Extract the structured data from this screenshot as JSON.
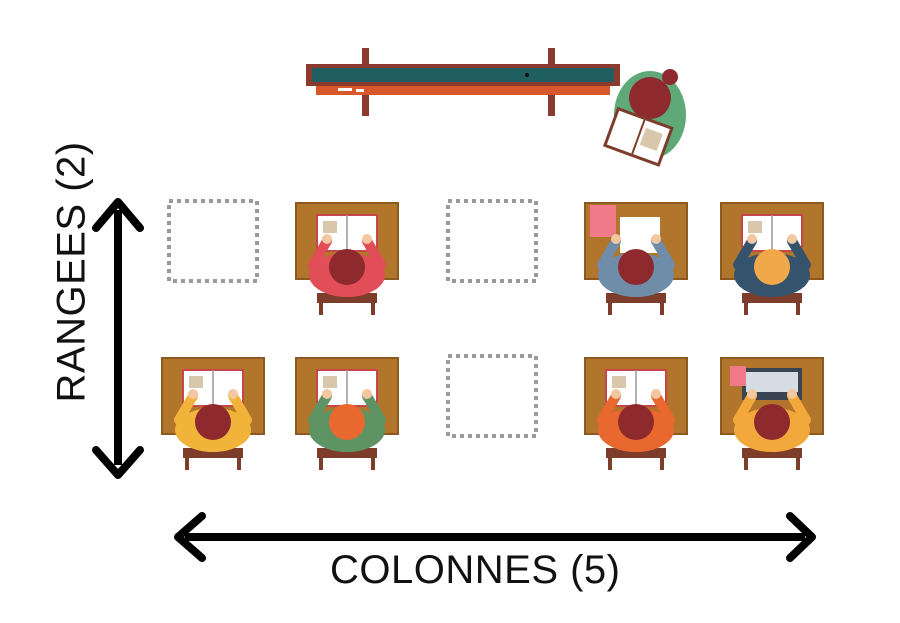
{
  "diagram": {
    "rows_label": "RANGEES   (2)",
    "columns_label": "COLONNES (5)"
  },
  "colors": {
    "desk": "#B1752B",
    "desk_dark": "#8C5A1E",
    "chair": "#7E3C2A",
    "board_frame": "#8B3A2E",
    "board_surface": "#1F5F5F",
    "board_ledge": "#D9582B",
    "empty_slot": "#9A9A9A",
    "arrow": "#000000"
  },
  "grid": {
    "rows": [
      [
        {
          "status": "empty"
        },
        {
          "status": "student",
          "shirt": "#E24E58",
          "hair": "#8E2A2E",
          "item": "book"
        },
        {
          "status": "empty"
        },
        {
          "status": "student",
          "shirt": "#6F8CA8",
          "hair": "#8E2A2E",
          "item": "papers"
        },
        {
          "status": "student",
          "shirt": "#36536E",
          "hair": "#F0A84A",
          "item": "book"
        }
      ],
      [
        {
          "status": "student",
          "shirt": "#F2B33B",
          "hair": "#8E2A2E",
          "item": "book"
        },
        {
          "status": "student",
          "shirt": "#5E9464",
          "hair": "#E9682F",
          "item": "book"
        },
        {
          "status": "empty"
        },
        {
          "status": "student",
          "shirt": "#E9682F",
          "hair": "#8E2A2E",
          "item": "book"
        },
        {
          "status": "student",
          "shirt": "#F2A83B",
          "hair": "#8E2A2E",
          "item": "laptop"
        }
      ]
    ]
  },
  "teacher": {
    "shirt": "#5FA878",
    "hair": "#8E2A2E",
    "item": "book"
  }
}
